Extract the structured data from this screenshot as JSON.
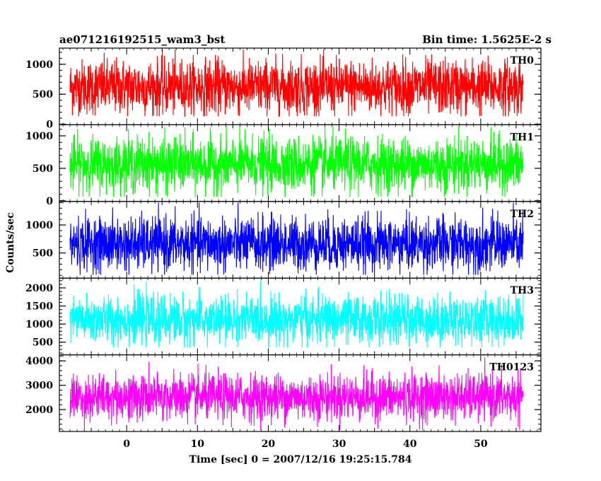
{
  "chart_data": {
    "type": "line",
    "title": "ae071216192515_wam3_bst",
    "bin_time_label": "Bin time: 1.5625E-2 s",
    "xlabel": "Time [sec] 0 = 2007/12/16 19:25:15.784",
    "ylabel": "Counts/sec",
    "xlim": [
      -9.5,
      58.5
    ],
    "x_ticks": [
      0,
      10,
      20,
      30,
      40,
      50
    ],
    "x_tick_labels": [
      "0",
      "10",
      "20",
      "30",
      "40",
      "50"
    ],
    "data_range": [
      -8,
      56
    ],
    "series": [
      {
        "name": "TH0",
        "color": "#ff0000",
        "ylim": [
          -10,
          1270
        ],
        "ticks": [
          0,
          500,
          1000
        ],
        "tick_labels": [
          "0",
          "500",
          "1000"
        ],
        "mean": 620,
        "spread": 230,
        "min": 130,
        "max": 1250
      },
      {
        "name": "TH1",
        "color": "#00ff00",
        "ylim": [
          -10,
          1170
        ],
        "ticks": [
          0,
          500,
          1000
        ],
        "tick_labels": [
          "0",
          "500",
          "1000"
        ],
        "mean": 560,
        "spread": 210,
        "min": 60,
        "max": 1150
      },
      {
        "name": "TH2",
        "color": "#0000ff",
        "ylim": [
          50,
          1420
        ],
        "ticks": [
          500,
          1000
        ],
        "tick_labels": [
          "500",
          "1000"
        ],
        "mean": 660,
        "spread": 240,
        "min": 110,
        "max": 1400
      },
      {
        "name": "TH3",
        "color": "#00ffff",
        "ylim": [
          150,
          2270
        ],
        "ticks": [
          500,
          1000,
          1500,
          2000
        ],
        "tick_labels": [
          "500",
          "1000",
          "1500",
          "2000"
        ],
        "mean": 1120,
        "spread": 330,
        "min": 350,
        "max": 2200
      },
      {
        "name": "TH0123",
        "color": "#ff00ff",
        "ylim": [
          1100,
          4250
        ],
        "ticks": [
          2000,
          3000,
          4000
        ],
        "tick_labels": [
          "2000",
          "3000",
          "4000"
        ],
        "mean": 2510,
        "spread": 480,
        "min": 1150,
        "max": 4150
      }
    ]
  }
}
